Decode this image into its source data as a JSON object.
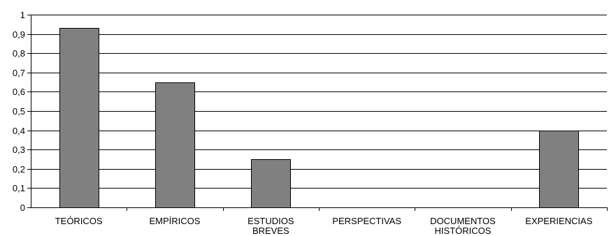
{
  "chart_data": {
    "type": "bar",
    "categories": [
      [
        "TEÓRICOS"
      ],
      [
        "EMPÍRICOS"
      ],
      [
        "ESTUDIOS",
        "BREVES"
      ],
      [
        "PERSPECTIVAS"
      ],
      [
        "DOCUMENTOS",
        "HISTÓRICOS"
      ],
      [
        "EXPERIENCIAS"
      ]
    ],
    "values": [
      0.93,
      0.65,
      0.25,
      0,
      0,
      0.4
    ],
    "ylim": [
      0,
      1
    ],
    "yticks": [
      0,
      0.1,
      0.2,
      0.3,
      0.4,
      0.5,
      0.6,
      0.7,
      0.8,
      0.9,
      1
    ],
    "ytick_labels": [
      "0",
      "0,1",
      "0,2",
      "0,3",
      "0,4",
      "0,5",
      "0,6",
      "0,7",
      "0,8",
      "0,9",
      "1"
    ],
    "grid": true,
    "bar_color": "#808080",
    "title": "",
    "xlabel": "",
    "ylabel": ""
  }
}
